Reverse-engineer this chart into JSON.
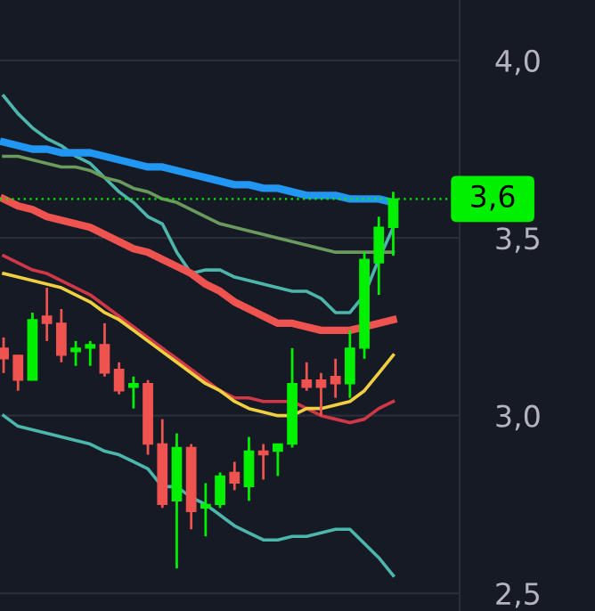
{
  "chart_data": {
    "type": "candlestick",
    "categories": [
      null,
      null,
      null,
      null,
      null,
      null,
      null,
      null,
      null,
      null,
      null,
      null,
      null,
      null,
      null,
      null,
      null,
      null,
      null,
      null,
      null,
      null,
      null,
      null,
      null,
      null,
      null,
      null
    ],
    "ohlc": [
      [
        3.19,
        3.22,
        3.12,
        3.16
      ],
      [
        3.17,
        3.17,
        3.07,
        3.1
      ],
      [
        3.1,
        3.29,
        3.1,
        3.27
      ],
      [
        3.28,
        3.36,
        3.21,
        3.26
      ],
      [
        3.26,
        3.3,
        3.15,
        3.17
      ],
      [
        3.18,
        3.21,
        3.14,
        3.19
      ],
      [
        3.19,
        3.21,
        3.14,
        3.2
      ],
      [
        3.2,
        3.26,
        3.11,
        3.12
      ],
      [
        3.13,
        3.15,
        3.06,
        3.07
      ],
      [
        3.08,
        3.11,
        3.02,
        3.09
      ],
      [
        3.09,
        3.1,
        2.89,
        2.92
      ],
      [
        2.92,
        2.99,
        2.74,
        2.75
      ],
      [
        2.76,
        2.95,
        2.57,
        2.91
      ],
      [
        2.91,
        2.92,
        2.68,
        2.73
      ],
      [
        2.74,
        2.81,
        2.66,
        2.75
      ],
      [
        2.75,
        2.84,
        2.74,
        2.83
      ],
      [
        2.84,
        2.87,
        2.79,
        2.81
      ],
      [
        2.8,
        2.94,
        2.76,
        2.9
      ],
      [
        2.9,
        2.92,
        2.82,
        2.89
      ],
      [
        2.9,
        2.92,
        2.83,
        2.92
      ],
      [
        2.92,
        3.19,
        2.91,
        3.09
      ],
      [
        3.1,
        3.15,
        3.07,
        3.08
      ],
      [
        3.1,
        3.12,
        3.0,
        3.08
      ],
      [
        3.11,
        3.16,
        3.05,
        3.09
      ],
      [
        3.09,
        3.24,
        3.05,
        3.19
      ],
      [
        3.19,
        3.46,
        3.16,
        3.44
      ],
      [
        3.43,
        3.56,
        3.34,
        3.53
      ],
      [
        3.53,
        3.63,
        3.45,
        3.61
      ]
    ],
    "colors": [
      "#ef5350",
      "#ef5350",
      "#00f000",
      "#ef5350",
      "#ef5350",
      "#00f000",
      "#00f000",
      "#ef5350",
      "#ef5350",
      "#00f000",
      "#ef5350",
      "#ef5350",
      "#00f000",
      "#ef5350",
      "#00f000",
      "#00f000",
      "#ef5350",
      "#00f000",
      "#ef5350",
      "#00f000",
      "#00f000",
      "#ef5350",
      "#ef5350",
      "#ef5350",
      "#00f000",
      "#00f000",
      "#00f000",
      "#00f000"
    ],
    "series": [
      {
        "type": "line",
        "color": "#4db6ac",
        "values": [
          3.9,
          3.85,
          3.81,
          3.78,
          3.76,
          3.73,
          3.71,
          3.67,
          3.63,
          3.6,
          3.56,
          3.54,
          3.46,
          3.4,
          3.41,
          3.41,
          3.39,
          3.38,
          3.37,
          3.36,
          3.35,
          3.35,
          3.33,
          3.29,
          3.29,
          3.34,
          3.44,
          3.53
        ]
      },
      {
        "type": "line",
        "color": "#4db6ac",
        "values": [
          3.0,
          2.97,
          2.96,
          2.95,
          2.94,
          2.93,
          2.92,
          2.9,
          2.89,
          2.87,
          2.85,
          2.8,
          2.8,
          2.77,
          2.75,
          2.72,
          2.69,
          2.67,
          2.65,
          2.65,
          2.66,
          2.66,
          2.67,
          2.68,
          2.68,
          2.64,
          2.6,
          2.55
        ]
      },
      {
        "type": "line",
        "color": "#6a9a5c",
        "values": [
          3.73,
          3.73,
          3.72,
          3.71,
          3.7,
          3.7,
          3.69,
          3.67,
          3.66,
          3.64,
          3.63,
          3.61,
          3.6,
          3.58,
          3.56,
          3.54,
          3.53,
          3.52,
          3.51,
          3.5,
          3.49,
          3.48,
          3.47,
          3.46,
          3.46,
          3.46,
          3.46,
          3.46
        ]
      },
      {
        "type": "line",
        "color": "#2196f3",
        "values": [
          3.77,
          3.76,
          3.75,
          3.75,
          3.74,
          3.74,
          3.74,
          3.73,
          3.72,
          3.71,
          3.7,
          3.7,
          3.69,
          3.68,
          3.67,
          3.66,
          3.65,
          3.65,
          3.64,
          3.64,
          3.63,
          3.62,
          3.62,
          3.62,
          3.61,
          3.61,
          3.61,
          3.6
        ]
      },
      {
        "type": "line",
        "color": "#ef5350",
        "values": [
          3.61,
          3.59,
          3.58,
          3.56,
          3.55,
          3.54,
          3.53,
          3.51,
          3.49,
          3.47,
          3.46,
          3.44,
          3.42,
          3.4,
          3.37,
          3.35,
          3.32,
          3.3,
          3.28,
          3.26,
          3.26,
          3.25,
          3.24,
          3.24,
          3.24,
          3.25,
          3.26,
          3.27
        ]
      },
      {
        "type": "line",
        "color": "#d03848",
        "values": [
          3.45,
          3.43,
          3.41,
          3.4,
          3.38,
          3.36,
          3.34,
          3.31,
          3.28,
          3.25,
          3.22,
          3.19,
          3.16,
          3.13,
          3.1,
          3.07,
          3.05,
          3.05,
          3.04,
          3.04,
          3.04,
          3.02,
          3.0,
          2.99,
          2.98,
          2.99,
          3.02,
          3.04
        ]
      },
      {
        "type": "line",
        "color": "#f0d040",
        "values": [
          3.4,
          3.39,
          3.38,
          3.37,
          3.36,
          3.34,
          3.32,
          3.29,
          3.27,
          3.24,
          3.21,
          3.18,
          3.15,
          3.12,
          3.09,
          3.07,
          3.04,
          3.02,
          3.01,
          3.0,
          3.0,
          3.02,
          3.02,
          3.03,
          3.04,
          3.07,
          3.12,
          3.17
        ]
      }
    ],
    "ylim": [
      2.45,
      4.17
    ],
    "yticks": [
      {
        "value": 2.5,
        "label": "2,5"
      },
      {
        "value": 3.0,
        "label": "3,0"
      },
      {
        "value": 3.5,
        "label": "3,5"
      },
      {
        "value": 4.0,
        "label": "4,0"
      }
    ],
    "grid": "y",
    "tick_labels": "y",
    "ref_lines": [
      {
        "axis": "y",
        "value": 3.61,
        "label": "3,6",
        "color": "#00f000",
        "line_style": "dotted"
      }
    ]
  }
}
